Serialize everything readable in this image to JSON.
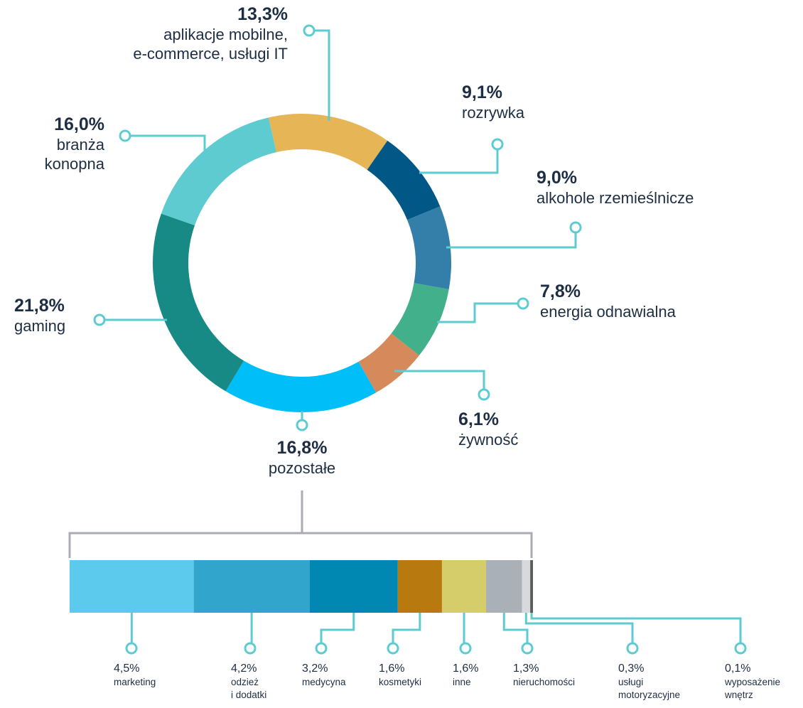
{
  "chart_data": [
    {
      "type": "donut",
      "categories": [
        "aplikacje mobilne,\ne-commerce, usługi IT",
        "rozrywka",
        "alkohole rzemieślnicze",
        "energia odnawialna",
        "żywność",
        "pozostałe",
        "gaming",
        "branża\nkonopna"
      ],
      "values": [
        13.3,
        9.1,
        9.0,
        7.8,
        6.1,
        16.8,
        21.8,
        16.0
      ],
      "value_labels": [
        "13,3%",
        "9,1%",
        "9,0%",
        "7,8%",
        "6,1%",
        "16,8%",
        "21,8%",
        "16,0%"
      ],
      "colors": [
        "#e5b556",
        "#015785",
        "#347fa9",
        "#43b08c",
        "#d6895a",
        "#00bff8",
        "#178a85",
        "#5ecbd0"
      ]
    },
    {
      "type": "stacked_bar",
      "categories": [
        "marketing",
        "odzież\ni dodatki",
        "medycyna",
        "kosmetyki",
        "inne",
        "nieruchomości",
        "usługi\nmotoryzacyjne",
        "wyposażenie\nwnętrz"
      ],
      "values": [
        4.5,
        4.2,
        3.2,
        1.6,
        1.6,
        1.3,
        0.3,
        0.1
      ],
      "value_labels": [
        "4,5%",
        "4,2%",
        "3,2%",
        "1,6%",
        "1,6%",
        "1,3%",
        "0,3%",
        "0,1%"
      ],
      "colors": [
        "#5ccaec",
        "#31a5cb",
        "#0088b3",
        "#b8790e",
        "#d5cd6a",
        "#aab0b7",
        "#d7d9dc",
        "#5c5c5c"
      ]
    }
  ]
}
